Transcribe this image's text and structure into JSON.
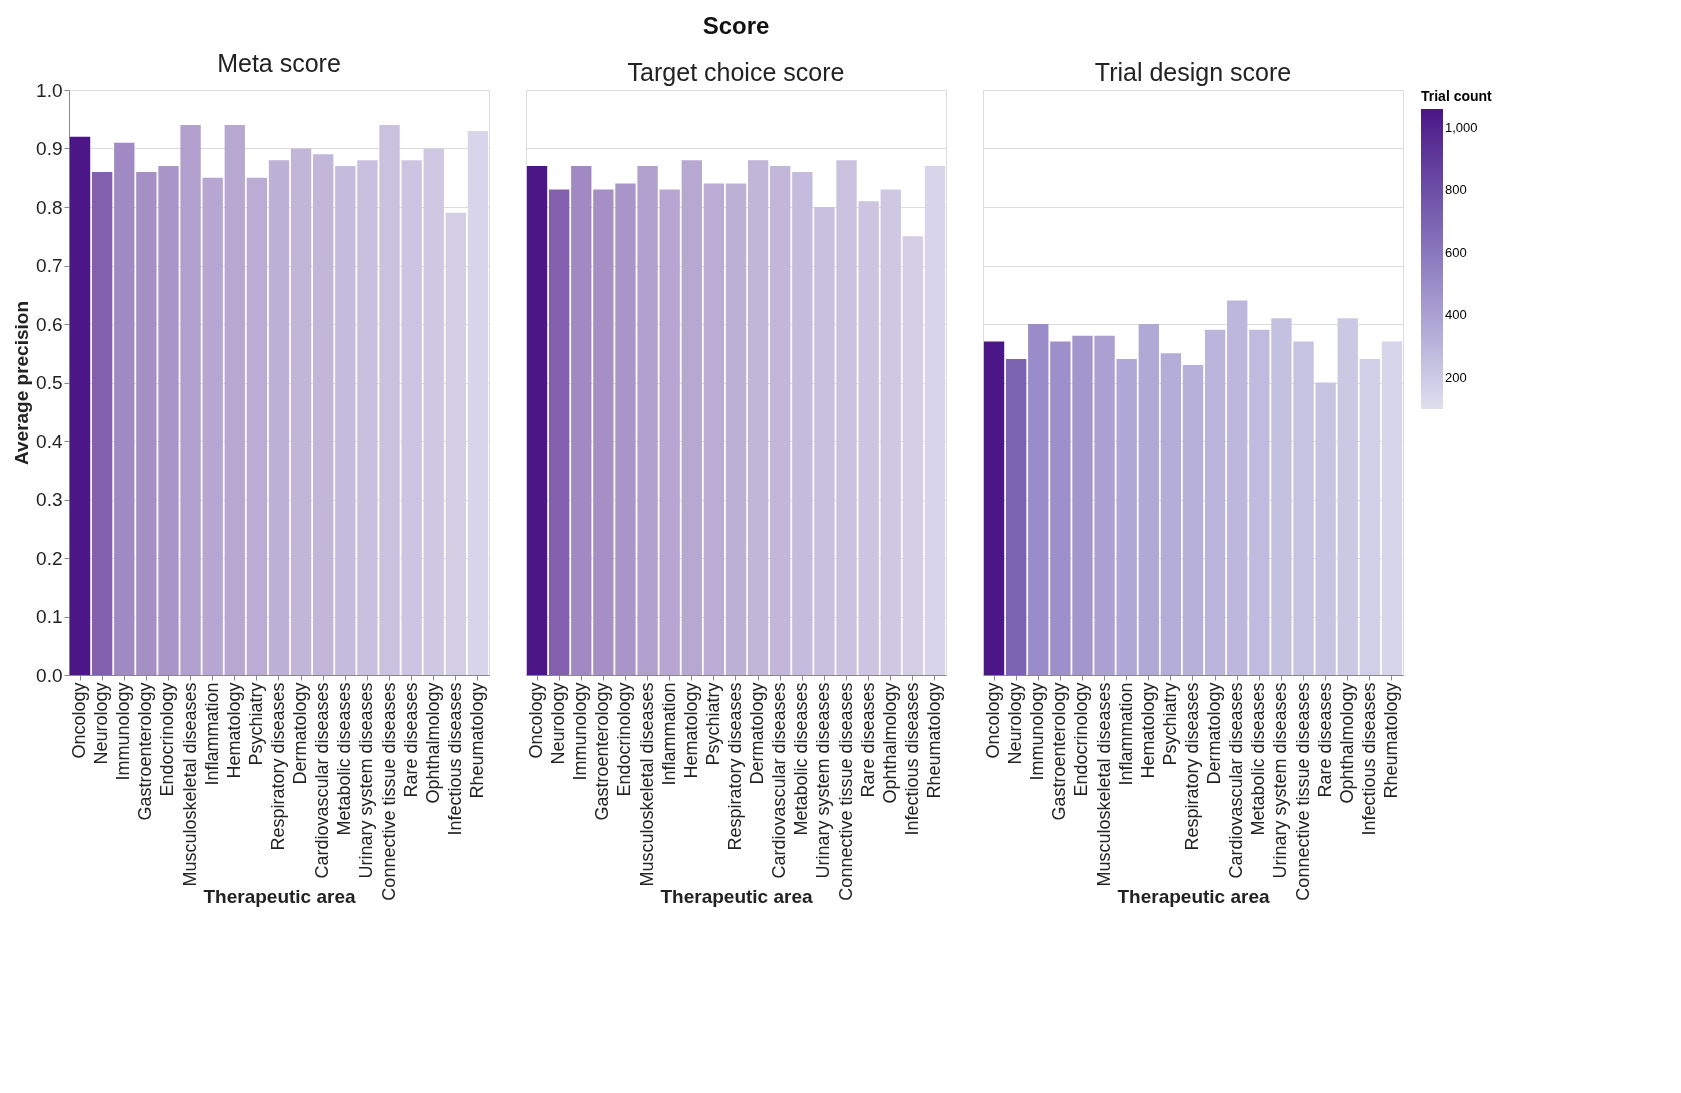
{
  "chart_data": [
    {
      "type": "bar",
      "subtitle": "Meta score",
      "xlabel": "Therapeutic area",
      "ylabel": "Average precision",
      "categories": [
        "Oncology",
        "Neurology",
        "Immunology",
        "Gastroenterology",
        "Endocrinology",
        "Musculoskeletal diseases",
        "Inflammation",
        "Hematology",
        "Psychiatry",
        "Respiratory diseases",
        "Dermatology",
        "Cardiovascular diseases",
        "Metabolic diseases",
        "Urinary system diseases",
        "Connective tissue diseases",
        "Rare diseases",
        "Ophthalmology",
        "Infectious diseases",
        "Rheumatology"
      ],
      "values": [
        0.92,
        0.86,
        0.91,
        0.86,
        0.87,
        0.94,
        0.85,
        0.94,
        0.85,
        0.88,
        0.9,
        0.89,
        0.87,
        0.88,
        0.94,
        0.88,
        0.9,
        0.79,
        0.93
      ],
      "colors": [
        "#4c1687",
        "#8260ad",
        "#a18ac3",
        "#a58fc5",
        "#a995c8",
        "#b1a0cd",
        "#b6a6d1",
        "#b7a8d2",
        "#baacd4",
        "#beb1d6",
        "#c1b5d8",
        "#c2b7d9",
        "#c5bbdc",
        "#c9bfde",
        "#cac1df",
        "#ccc4e0",
        "#cfc8e2",
        "#d4cee5",
        "#d8d4e9"
      ],
      "ylim": [
        0,
        1
      ],
      "yticks": [
        {
          "value": 0,
          "label": "0.0"
        },
        0.1,
        0.2,
        0.3,
        0.4,
        0.5,
        0.6,
        0.7,
        0.8,
        0.9,
        {
          "value": 1,
          "label": "1.0"
        }
      ],
      "grid": "y"
    },
    {
      "type": "bar",
      "title": "Score",
      "subtitle": "Target choice score",
      "xlabel": "Therapeutic area",
      "categories": [
        "Oncology",
        "Neurology",
        "Immunology",
        "Gastroenterology",
        "Endocrinology",
        "Musculoskeletal diseases",
        "Inflammation",
        "Hematology",
        "Psychiatry",
        "Respiratory diseases",
        "Dermatology",
        "Cardiovascular diseases",
        "Metabolic diseases",
        "Urinary system diseases",
        "Connective tissue diseases",
        "Rare diseases",
        "Ophthalmology",
        "Infectious diseases",
        "Rheumatology"
      ],
      "values": [
        0.87,
        0.83,
        0.87,
        0.83,
        0.84,
        0.87,
        0.83,
        0.88,
        0.84,
        0.84,
        0.88,
        0.87,
        0.86,
        0.8,
        0.88,
        0.81,
        0.83,
        0.75,
        0.87
      ],
      "colors": [
        "#4c1687",
        "#8260ad",
        "#a18ac3",
        "#a58fc5",
        "#a995c8",
        "#b1a0cd",
        "#b6a6d1",
        "#b7a8d2",
        "#baacd4",
        "#beb1d6",
        "#c1b5d8",
        "#c2b7d9",
        "#c5bbdc",
        "#c9bfde",
        "#cac1df",
        "#ccc4e0",
        "#cfc8e2",
        "#d4cee5",
        "#d8d4e9"
      ],
      "ylim": [
        0,
        1
      ],
      "yticks": [
        0,
        0.1,
        0.2,
        0.3,
        0.4,
        0.5,
        0.6,
        0.7,
        0.8,
        0.9,
        1
      ],
      "grid": "y",
      "tick_labels": "x"
    },
    {
      "type": "bar",
      "subtitle": "Trial design score",
      "xlabel": "Therapeutic area",
      "clabel": "Trial count",
      "categories": [
        "Oncology",
        "Neurology",
        "Immunology",
        "Gastroenterology",
        "Endocrinology",
        "Musculoskeletal diseases",
        "Inflammation",
        "Hematology",
        "Psychiatry",
        "Respiratory diseases",
        "Dermatology",
        "Cardiovascular diseases",
        "Metabolic diseases",
        "Urinary system diseases",
        "Connective tissue diseases",
        "Rare diseases",
        "Ophthalmology",
        "Infectious diseases",
        "Rheumatology"
      ],
      "values": [
        0.57,
        0.54,
        0.6,
        0.57,
        0.58,
        0.58,
        0.54,
        0.6,
        0.55,
        0.53,
        0.59,
        0.64,
        0.59,
        0.61,
        0.57,
        0.5,
        0.61,
        0.54,
        0.57
      ],
      "cvalues": [
        1050,
        700,
        500,
        480,
        450,
        400,
        370,
        360,
        340,
        320,
        300,
        290,
        270,
        250,
        240,
        230,
        210,
        180,
        150
      ],
      "clim": [
        100,
        1060
      ],
      "cticks": [
        200,
        400,
        600,
        800,
        {
          "value": 1000,
          "label": "1,000"
        }
      ],
      "ylim": [
        0,
        1
      ],
      "yticks": [
        0,
        0.1,
        0.2,
        0.3,
        0.4,
        0.5,
        0.6,
        0.7,
        0.8,
        0.9,
        1
      ],
      "grid": "y",
      "tick_labels": "x"
    }
  ]
}
